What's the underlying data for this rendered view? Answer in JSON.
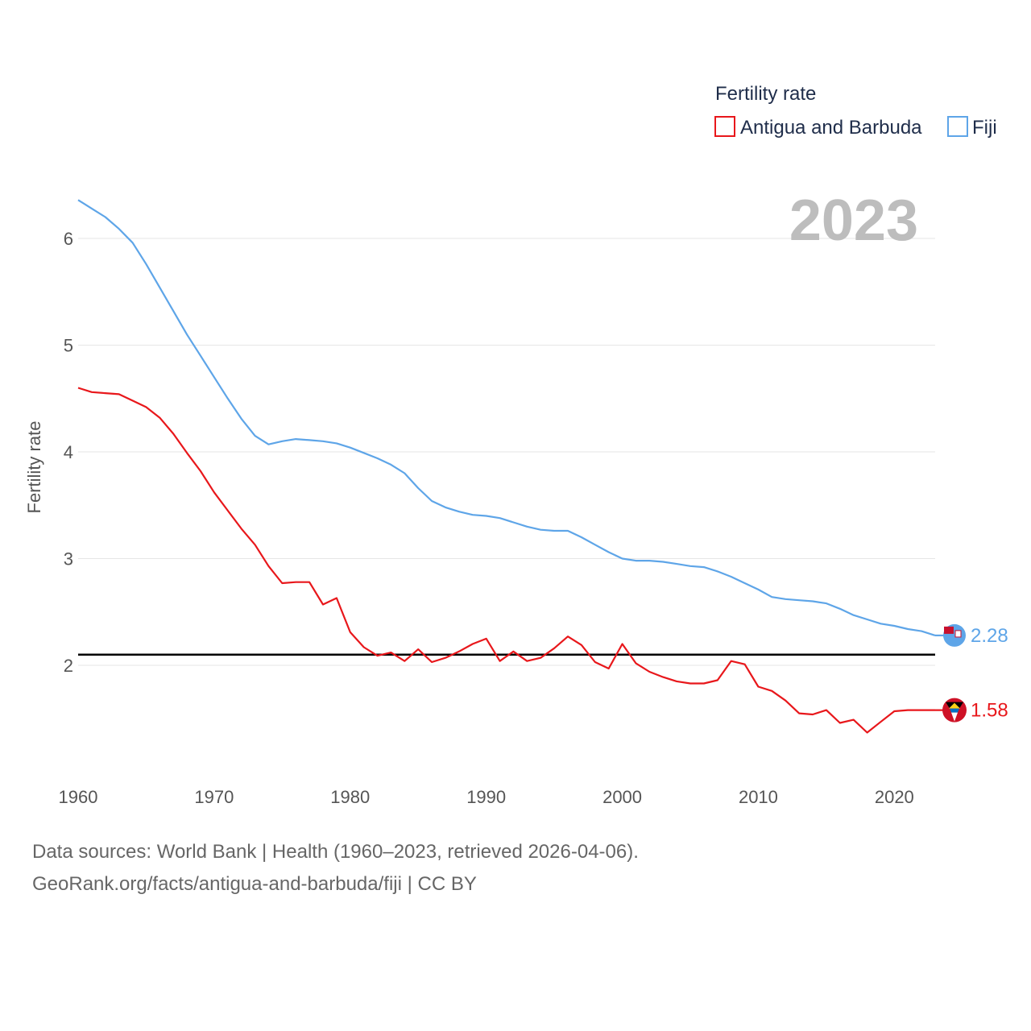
{
  "chart_data": {
    "type": "line",
    "ylabel": "Fertility rate",
    "xlabel": "",
    "xlim": [
      1960,
      2023
    ],
    "ylim": [
      1.0,
      6.5
    ],
    "yticks": [
      2,
      3,
      4,
      5,
      6
    ],
    "xticks": [
      1960,
      1970,
      1980,
      1990,
      2000,
      2010,
      2020
    ],
    "grid": true,
    "year_label": "2023",
    "reference_line": {
      "y": 2.1,
      "color": "#000000"
    },
    "legend": {
      "title": "Fertility rate",
      "placement": "top-right"
    },
    "x": [
      1960,
      1961,
      1962,
      1963,
      1964,
      1965,
      1966,
      1967,
      1968,
      1969,
      1970,
      1971,
      1972,
      1973,
      1974,
      1975,
      1976,
      1977,
      1978,
      1979,
      1980,
      1981,
      1982,
      1983,
      1984,
      1985,
      1986,
      1987,
      1988,
      1989,
      1990,
      1991,
      1992,
      1993,
      1994,
      1995,
      1996,
      1997,
      1998,
      1999,
      2000,
      2001,
      2002,
      2003,
      2004,
      2005,
      2006,
      2007,
      2008,
      2009,
      2010,
      2011,
      2012,
      2013,
      2014,
      2015,
      2016,
      2017,
      2018,
      2019,
      2020,
      2021,
      2022,
      2023
    ],
    "series": [
      {
        "name": "Antigua and Barbuda",
        "color": "#e8171b",
        "end_label": "1.58",
        "values": [
          4.6,
          4.56,
          4.55,
          4.54,
          4.48,
          4.42,
          4.32,
          4.17,
          3.99,
          3.82,
          3.62,
          3.45,
          3.28,
          3.13,
          2.93,
          2.77,
          2.78,
          2.78,
          2.57,
          2.63,
          2.31,
          2.17,
          2.09,
          2.12,
          2.04,
          2.15,
          2.03,
          2.07,
          2.13,
          2.2,
          2.25,
          2.04,
          2.13,
          2.04,
          2.07,
          2.16,
          2.27,
          2.19,
          2.03,
          1.97,
          2.2,
          2.02,
          1.94,
          1.89,
          1.85,
          1.83,
          1.83,
          1.86,
          2.04,
          2.01,
          1.8,
          1.76,
          1.67,
          1.55,
          1.54,
          1.58,
          1.46,
          1.49,
          1.37,
          1.47,
          1.57,
          1.58,
          1.58,
          1.58
        ]
      },
      {
        "name": "Fiji",
        "color": "#5ea5e8",
        "end_label": "2.28",
        "values": [
          6.36,
          6.28,
          6.2,
          6.09,
          5.96,
          5.76,
          5.54,
          5.32,
          5.1,
          4.9,
          4.7,
          4.5,
          4.31,
          4.15,
          4.07,
          4.1,
          4.12,
          4.11,
          4.1,
          4.08,
          4.04,
          3.99,
          3.94,
          3.88,
          3.8,
          3.66,
          3.54,
          3.48,
          3.44,
          3.41,
          3.4,
          3.38,
          3.34,
          3.3,
          3.27,
          3.26,
          3.26,
          3.2,
          3.13,
          3.06,
          3.0,
          2.98,
          2.98,
          2.97,
          2.95,
          2.93,
          2.92,
          2.88,
          2.83,
          2.77,
          2.71,
          2.64,
          2.62,
          2.61,
          2.6,
          2.58,
          2.53,
          2.47,
          2.43,
          2.39,
          2.37,
          2.34,
          2.32,
          2.28
        ]
      }
    ]
  },
  "footer": {
    "source": "Data sources: World Bank | Health (1960–2023, retrieved 2026-04-06).",
    "link": "GeoRank.org/facts/antigua-and-barbuda/fiji | CC BY"
  }
}
